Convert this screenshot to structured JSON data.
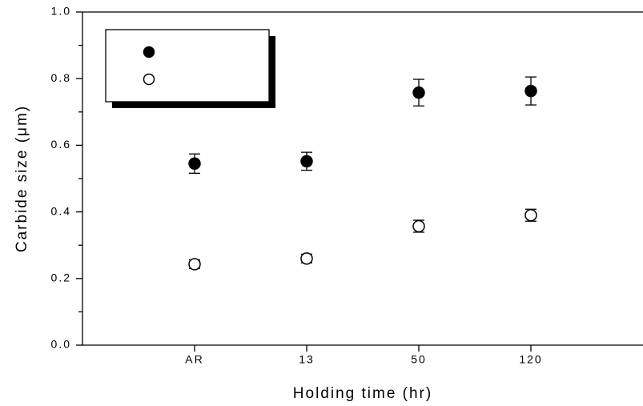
{
  "chart_data": {
    "type": "scatter",
    "x_label": "Holding time (hr)",
    "y_label": "Carbide size (μm)",
    "categories": [
      "AR",
      "13",
      "50",
      "120"
    ],
    "series": [
      {
        "color": "#000000",
        "marker": "filled",
        "values": [
          0.545,
          0.552,
          0.758,
          0.763
        ],
        "errors": [
          0.029,
          0.027,
          0.04,
          0.042
        ]
      },
      {
        "color": "#000000",
        "marker": "open",
        "values": [
          0.243,
          0.26,
          0.357,
          0.39
        ],
        "errors": [
          0.013,
          0.013,
          0.018,
          0.018
        ]
      }
    ],
    "ylim": [
      0,
      1
    ],
    "yticks": [
      {
        "value": 0,
        "label": "0.0"
      },
      0.2,
      0.4,
      0.6,
      0.8,
      {
        "value": 1,
        "label": "1.0"
      }
    ],
    "yminor_ticks": [
      0.1,
      0.3,
      0.5,
      0.7,
      0.9
    ],
    "legend": "upper left"
  }
}
